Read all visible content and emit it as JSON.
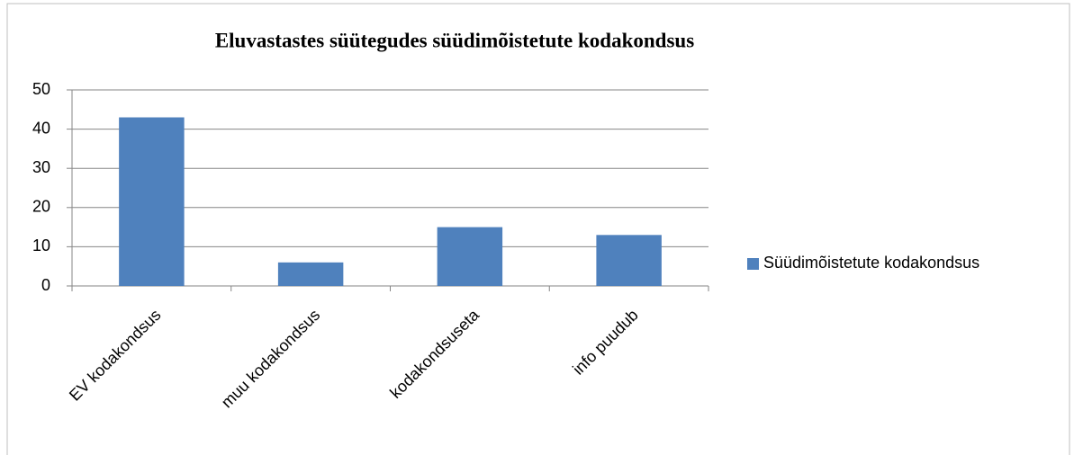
{
  "chart_data": {
    "type": "bar",
    "title": "Eluvastastes süütegudes süüdimõistetute kodakondsus",
    "categories": [
      "EV kodakondsus",
      "muu kodakondsus",
      "kodakondsuseta",
      "info puudub"
    ],
    "series": [
      {
        "name": "Süüdimõistetute kodakondsus",
        "color": "#4f81bd",
        "values": [
          43,
          6,
          15,
          13
        ]
      }
    ],
    "ylim": [
      0,
      50
    ],
    "yticks": [
      0,
      10,
      20,
      30,
      40,
      50
    ],
    "grid": true,
    "legend": "right"
  }
}
